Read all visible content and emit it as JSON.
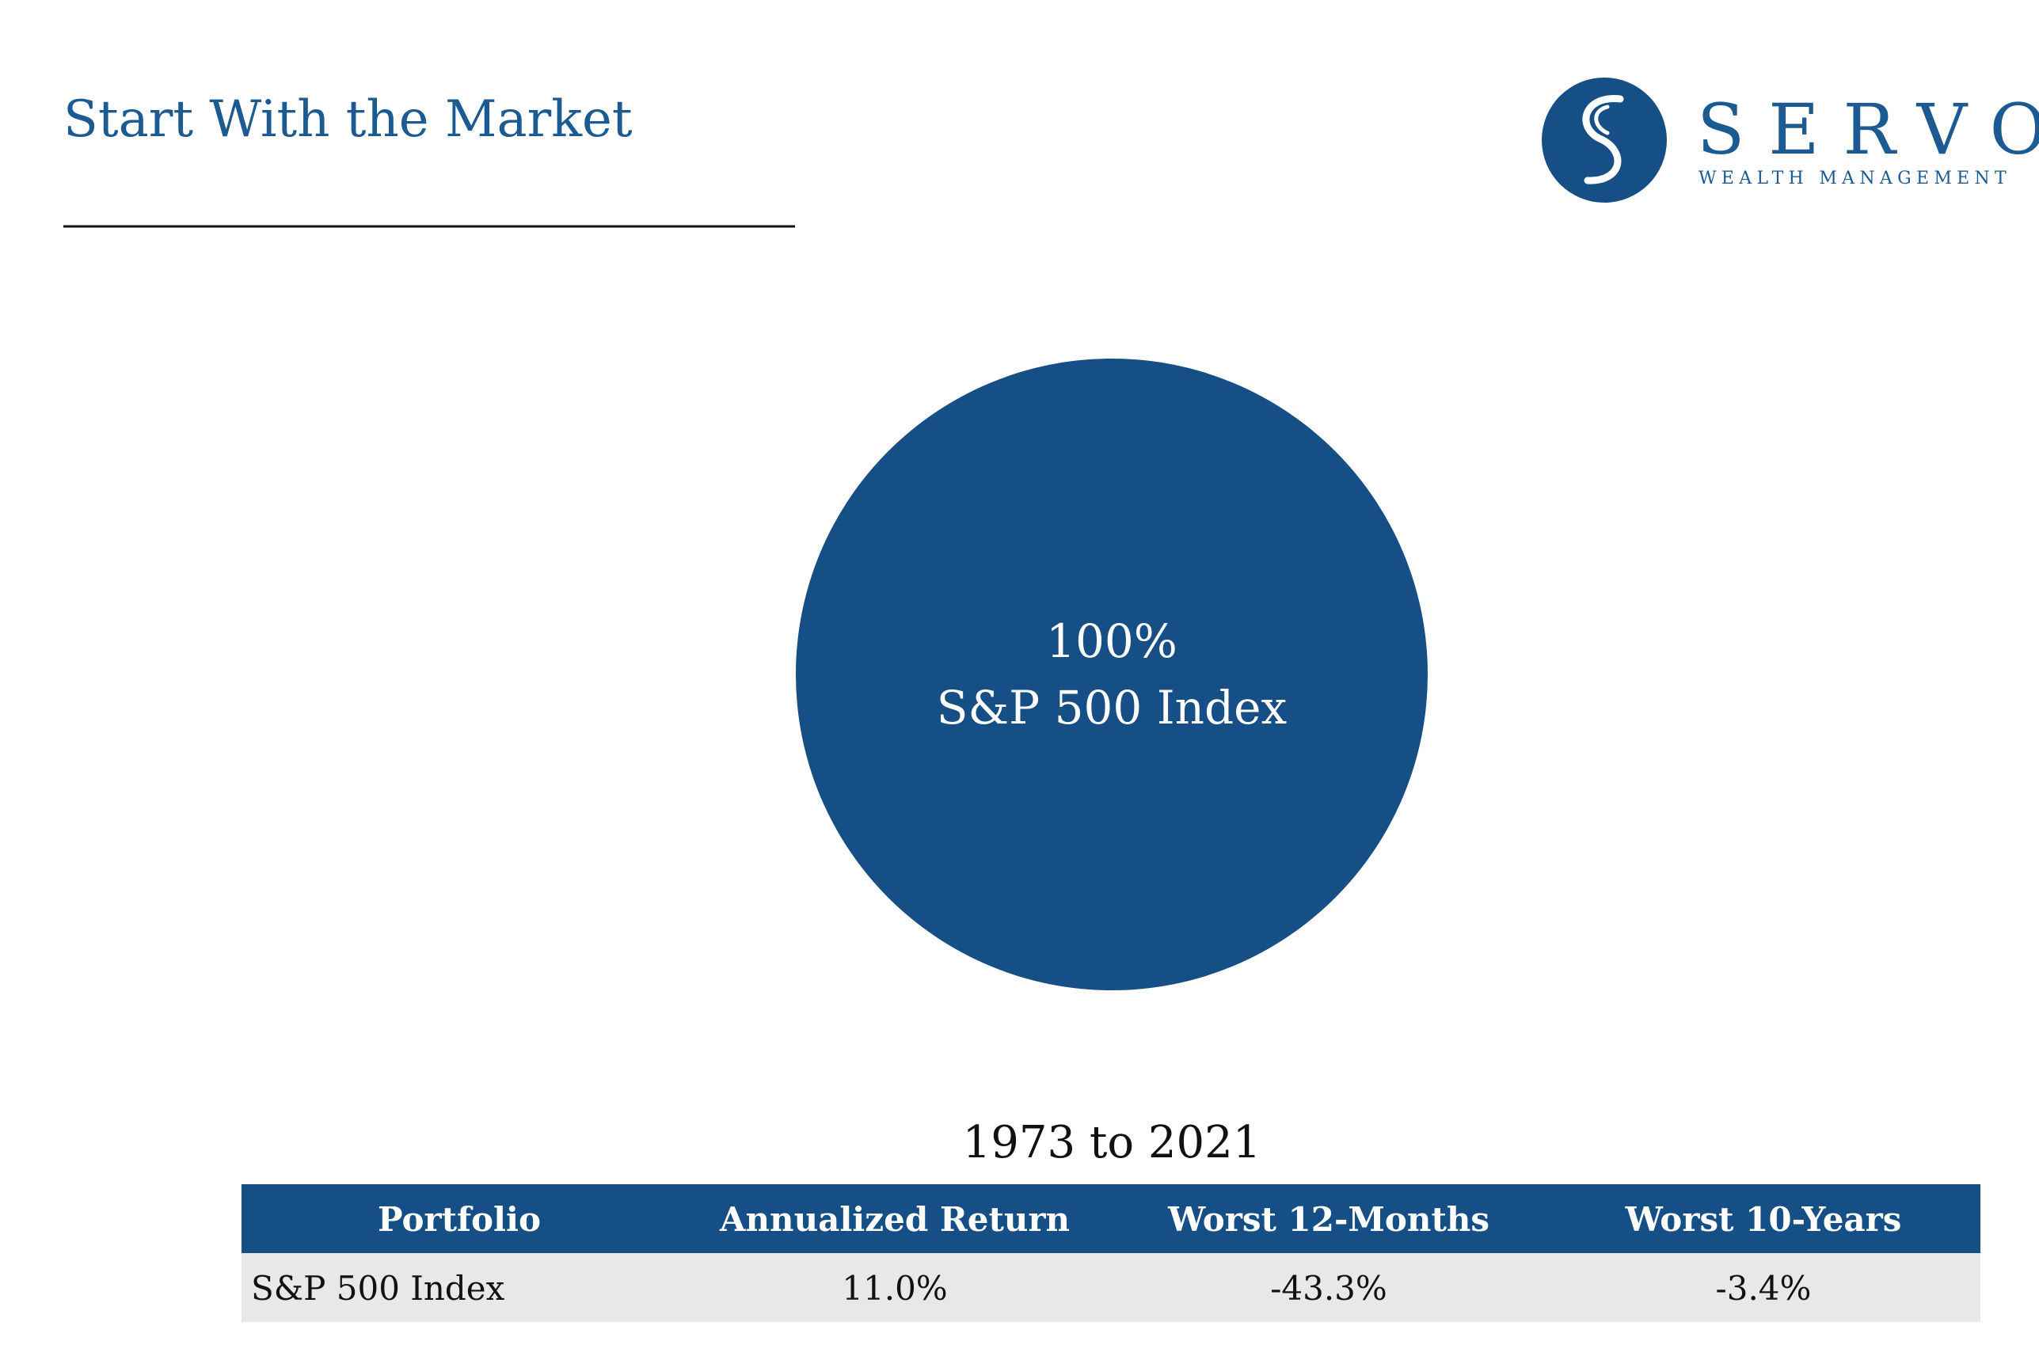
{
  "header": {
    "title": "Start With the Market"
  },
  "logo": {
    "name": "SERVO",
    "tagline": "WEALTH MANAGEMENT"
  },
  "chart_data": {
    "type": "pie",
    "categories": [
      "S&P 500 Index"
    ],
    "values": [
      100
    ],
    "value_labels": [
      "100%"
    ],
    "colors": [
      "#164f86"
    ]
  },
  "table": {
    "caption": "1973 to 2021",
    "columns": [
      "Portfolio",
      "Annualized Return",
      "Worst 12-Months",
      "Worst 10-Years"
    ],
    "rows": [
      [
        "S&P 500 Index",
        "11.0%",
        "-43.3%",
        "-3.4%"
      ]
    ]
  }
}
